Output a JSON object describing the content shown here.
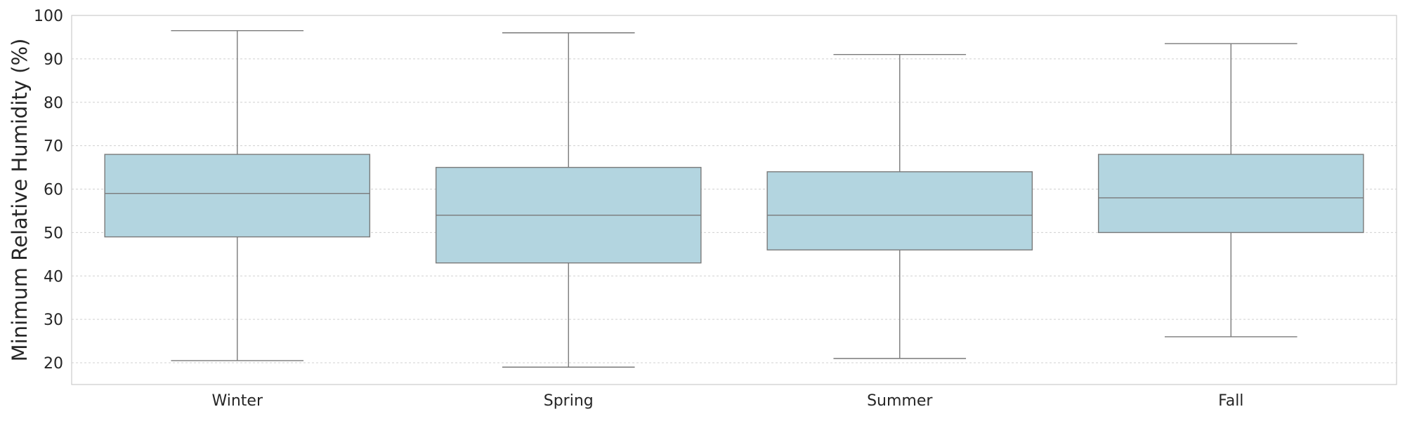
{
  "chart_data": {
    "type": "box",
    "title": "",
    "xlabel": "",
    "ylabel": "Minimum Relative Humidity (%)",
    "ylim": [
      15,
      100
    ],
    "yticks": [
      20,
      30,
      40,
      50,
      60,
      70,
      80,
      90,
      100
    ],
    "grid": "y",
    "box_color": "#b3d5e0",
    "line_color": "#7a7a7a",
    "categories": [
      "Winter",
      "Spring",
      "Summer",
      "Fall"
    ],
    "boxes": [
      {
        "category": "Winter",
        "whisker_low": 20.5,
        "q1": 49,
        "median": 59,
        "q3": 68,
        "whisker_high": 96.5
      },
      {
        "category": "Spring",
        "whisker_low": 19,
        "q1": 43,
        "median": 54,
        "q3": 65,
        "whisker_high": 96
      },
      {
        "category": "Summer",
        "whisker_low": 21,
        "q1": 46,
        "median": 54,
        "q3": 64,
        "whisker_high": 91
      },
      {
        "category": "Fall",
        "whisker_low": 26,
        "q1": 50,
        "median": 58,
        "q3": 68,
        "whisker_high": 93.5
      }
    ]
  }
}
